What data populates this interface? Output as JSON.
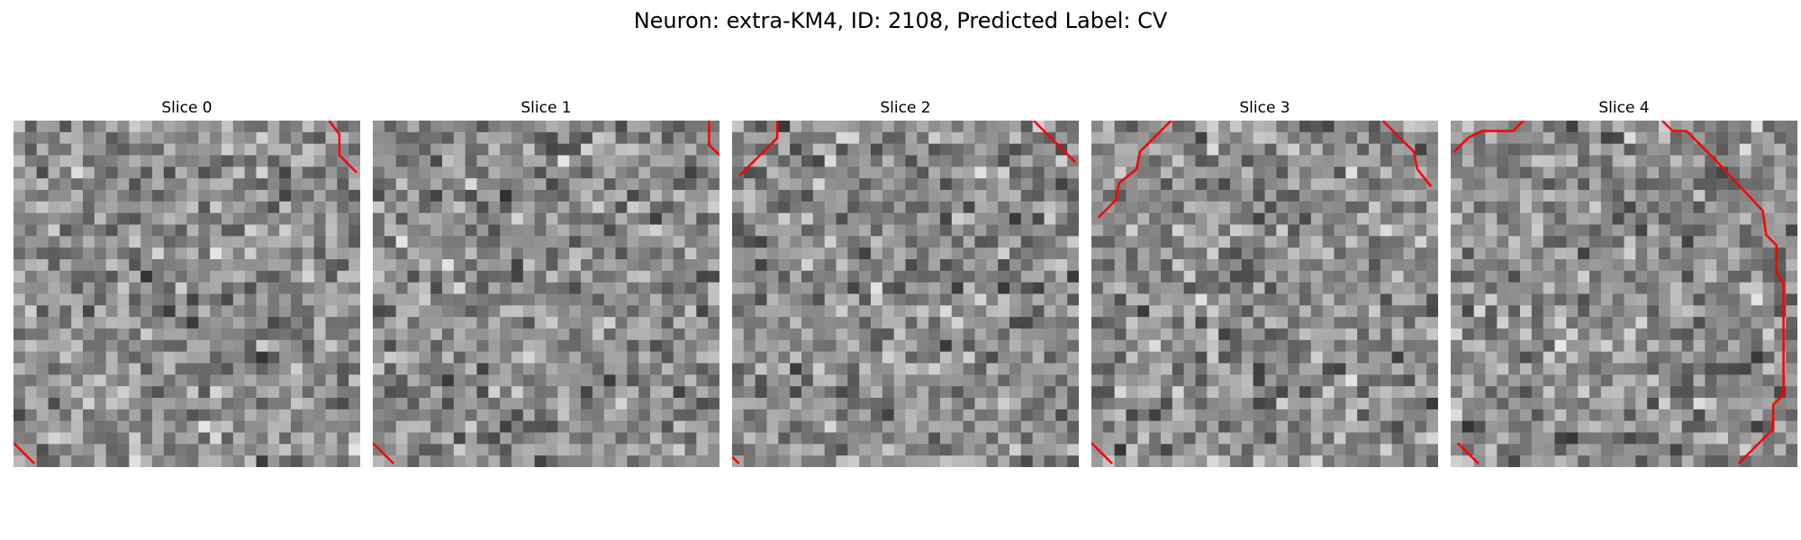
{
  "figure": {
    "title": "Neuron: extra-KM4, ID: 2108, Predicted Label: CV",
    "colormap": "gray",
    "contour_color": "#ff0000",
    "grid_size": 30
  },
  "slices": [
    {
      "title": "Slice 0",
      "seed": 11,
      "contours": [
        [
          [
            0.91,
            0.0
          ],
          [
            0.94,
            0.04
          ],
          [
            0.94,
            0.1
          ],
          [
            0.99,
            0.15
          ]
        ],
        [
          [
            0.0,
            0.93
          ],
          [
            0.06,
            0.99
          ]
        ]
      ]
    },
    {
      "title": "Slice 1",
      "seed": 23,
      "contours": [
        [
          [
            0.97,
            0.0
          ],
          [
            0.97,
            0.07
          ],
          [
            1.0,
            0.1
          ]
        ],
        [
          [
            0.0,
            0.93
          ],
          [
            0.06,
            0.99
          ]
        ]
      ]
    },
    {
      "title": "Slice 2",
      "seed": 37,
      "contours": [
        [
          [
            0.13,
            0.0
          ],
          [
            0.13,
            0.05
          ],
          [
            0.1,
            0.08
          ],
          [
            0.02,
            0.16
          ]
        ],
        [
          [
            0.87,
            0.0
          ],
          [
            0.99,
            0.12
          ]
        ],
        [
          [
            0.0,
            0.97
          ],
          [
            0.02,
            0.99
          ]
        ]
      ]
    },
    {
      "title": "Slice 3",
      "seed": 49,
      "contours": [
        [
          [
            0.23,
            0.0
          ],
          [
            0.14,
            0.09
          ],
          [
            0.13,
            0.14
          ],
          [
            0.08,
            0.18
          ],
          [
            0.07,
            0.23
          ],
          [
            0.02,
            0.28
          ]
        ],
        [
          [
            0.84,
            0.0
          ],
          [
            0.93,
            0.09
          ],
          [
            0.94,
            0.14
          ],
          [
            0.98,
            0.19
          ]
        ],
        [
          [
            0.0,
            0.93
          ],
          [
            0.06,
            0.99
          ]
        ]
      ]
    },
    {
      "title": "Slice 4",
      "seed": 61,
      "contours": [
        [
          [
            0.01,
            0.09
          ],
          [
            0.05,
            0.05
          ],
          [
            0.09,
            0.03
          ],
          [
            0.18,
            0.03
          ],
          [
            0.21,
            0.0
          ]
        ],
        [
          [
            0.61,
            0.0
          ],
          [
            0.64,
            0.03
          ],
          [
            0.68,
            0.03
          ],
          [
            0.76,
            0.11
          ],
          [
            0.9,
            0.26
          ],
          [
            0.91,
            0.33
          ],
          [
            0.94,
            0.36
          ],
          [
            0.94,
            0.44
          ],
          [
            0.96,
            0.47
          ],
          [
            0.96,
            0.79
          ],
          [
            0.93,
            0.82
          ],
          [
            0.93,
            0.89
          ],
          [
            0.83,
            0.99
          ]
        ],
        [
          [
            0.02,
            0.93
          ],
          [
            0.08,
            0.99
          ]
        ]
      ]
    }
  ]
}
